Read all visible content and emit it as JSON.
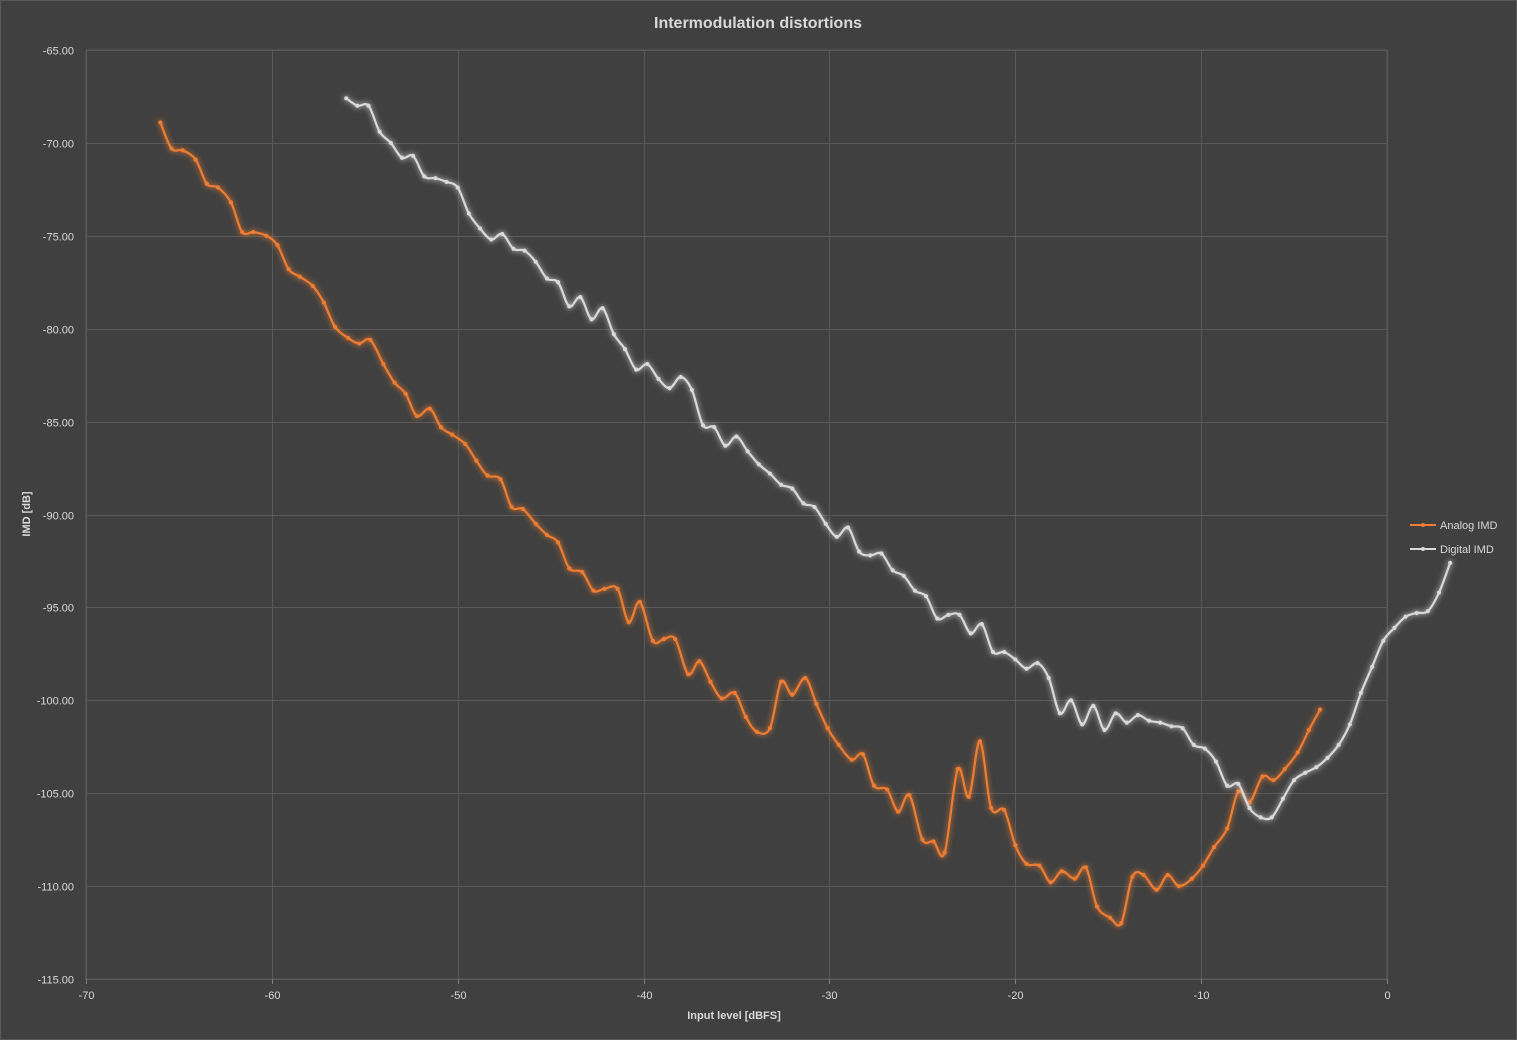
{
  "chart_data": {
    "type": "line",
    "title": "Intermodulation distortions",
    "xlabel": "Input level [dBFS]",
    "ylabel": "IMD [dB]",
    "xlim": [
      -70,
      0
    ],
    "ylim": [
      -115,
      -65
    ],
    "x_ticks": [
      "-70",
      "-60",
      "-50",
      "-40",
      "-30",
      "-20",
      "-10",
      "0"
    ],
    "y_ticks": [
      "-65.00",
      "-70.00",
      "-75.00",
      "-80.00",
      "-85.00",
      "-90.00",
      "-95.00",
      "-100.00",
      "-105.00",
      "-110.00",
      "-115.00"
    ],
    "grid": true,
    "legend_position": "right",
    "series": [
      {
        "name": "Analog IMD",
        "color": "#ed7d31",
        "points": [
          [
            -66.0,
            -68.9
          ],
          [
            -65.4,
            -70.3
          ],
          [
            -64.8,
            -70.4
          ],
          [
            -64.1,
            -70.9
          ],
          [
            -63.5,
            -72.2
          ],
          [
            -62.9,
            -72.4
          ],
          [
            -62.2,
            -73.2
          ],
          [
            -61.6,
            -74.8
          ],
          [
            -61.0,
            -74.8
          ],
          [
            -60.3,
            -75.0
          ],
          [
            -59.7,
            -75.5
          ],
          [
            -59.1,
            -76.8
          ],
          [
            -58.5,
            -77.2
          ],
          [
            -57.8,
            -77.7
          ],
          [
            -57.2,
            -78.6
          ],
          [
            -56.6,
            -79.9
          ],
          [
            -55.9,
            -80.5
          ],
          [
            -55.3,
            -80.8
          ],
          [
            -54.7,
            -80.6
          ],
          [
            -54.0,
            -81.9
          ],
          [
            -53.4,
            -82.9
          ],
          [
            -52.8,
            -83.5
          ],
          [
            -52.2,
            -84.7
          ],
          [
            -51.5,
            -84.3
          ],
          [
            -50.9,
            -85.3
          ],
          [
            -50.3,
            -85.7
          ],
          [
            -49.6,
            -86.2
          ],
          [
            -49.0,
            -87.1
          ],
          [
            -48.4,
            -87.9
          ],
          [
            -47.7,
            -88.1
          ],
          [
            -47.1,
            -89.6
          ],
          [
            -46.5,
            -89.7
          ],
          [
            -45.8,
            -90.5
          ],
          [
            -45.2,
            -91.1
          ],
          [
            -44.6,
            -91.5
          ],
          [
            -44.0,
            -92.9
          ],
          [
            -43.3,
            -93.1
          ],
          [
            -42.7,
            -94.1
          ],
          [
            -42.1,
            -94.0
          ],
          [
            -41.4,
            -94.0
          ],
          [
            -40.8,
            -95.8
          ],
          [
            -40.2,
            -94.7
          ],
          [
            -39.5,
            -96.8
          ],
          [
            -38.9,
            -96.7
          ],
          [
            -38.3,
            -96.7
          ],
          [
            -37.6,
            -98.6
          ],
          [
            -37.0,
            -97.9
          ],
          [
            -36.4,
            -99.0
          ],
          [
            -35.8,
            -99.9
          ],
          [
            -35.1,
            -99.6
          ],
          [
            -34.5,
            -100.9
          ],
          [
            -33.9,
            -101.7
          ],
          [
            -33.2,
            -101.5
          ],
          [
            -32.6,
            -99.0
          ],
          [
            -32.0,
            -99.7
          ],
          [
            -31.3,
            -98.8
          ],
          [
            -30.7,
            -100.2
          ],
          [
            -30.1,
            -101.5
          ],
          [
            -29.5,
            -102.4
          ],
          [
            -28.8,
            -103.2
          ],
          [
            -28.2,
            -102.9
          ],
          [
            -27.6,
            -104.6
          ],
          [
            -26.9,
            -104.8
          ],
          [
            -26.3,
            -106.0
          ],
          [
            -25.7,
            -105.1
          ],
          [
            -25.0,
            -107.5
          ],
          [
            -24.4,
            -107.6
          ],
          [
            -23.8,
            -108.2
          ],
          [
            -23.1,
            -103.7
          ],
          [
            -22.5,
            -105.2
          ],
          [
            -21.9,
            -102.2
          ],
          [
            -21.3,
            -105.8
          ],
          [
            -20.6,
            -105.9
          ],
          [
            -20.0,
            -107.8
          ],
          [
            -19.4,
            -108.8
          ],
          [
            -18.7,
            -108.9
          ],
          [
            -18.1,
            -109.8
          ],
          [
            -17.5,
            -109.2
          ],
          [
            -16.8,
            -109.6
          ],
          [
            -16.2,
            -109.0
          ],
          [
            -15.6,
            -111.1
          ],
          [
            -14.9,
            -111.7
          ],
          [
            -14.3,
            -112.0
          ],
          [
            -13.7,
            -109.5
          ],
          [
            -13.1,
            -109.4
          ],
          [
            -12.4,
            -110.2
          ],
          [
            -11.8,
            -109.4
          ],
          [
            -11.2,
            -110.0
          ],
          [
            -10.5,
            -109.6
          ],
          [
            -9.9,
            -108.9
          ],
          [
            -9.3,
            -107.9
          ],
          [
            -8.6,
            -106.9
          ],
          [
            -8.0,
            -104.9
          ],
          [
            -7.4,
            -105.5
          ],
          [
            -6.7,
            -104.1
          ],
          [
            -6.1,
            -104.3
          ],
          [
            -5.5,
            -103.7
          ],
          [
            -4.8,
            -102.8
          ],
          [
            -4.2,
            -101.6
          ],
          [
            -3.6,
            -100.5
          ]
        ]
      },
      {
        "name": "Digital IMD",
        "color": "#d9d9d9",
        "points": [
          [
            -56.0,
            -67.6
          ],
          [
            -55.4,
            -68.0
          ],
          [
            -54.8,
            -68.0
          ],
          [
            -54.2,
            -69.4
          ],
          [
            -53.6,
            -70.0
          ],
          [
            -53.0,
            -70.8
          ],
          [
            -52.4,
            -70.7
          ],
          [
            -51.8,
            -71.8
          ],
          [
            -51.2,
            -71.9
          ],
          [
            -50.6,
            -72.1
          ],
          [
            -50.0,
            -72.4
          ],
          [
            -49.4,
            -73.8
          ],
          [
            -48.8,
            -74.6
          ],
          [
            -48.2,
            -75.2
          ],
          [
            -47.6,
            -74.9
          ],
          [
            -47.0,
            -75.7
          ],
          [
            -46.4,
            -75.8
          ],
          [
            -45.8,
            -76.4
          ],
          [
            -45.2,
            -77.3
          ],
          [
            -44.6,
            -77.5
          ],
          [
            -44.0,
            -78.8
          ],
          [
            -43.4,
            -78.3
          ],
          [
            -42.8,
            -79.5
          ],
          [
            -42.2,
            -78.9
          ],
          [
            -41.6,
            -80.3
          ],
          [
            -41.0,
            -81.1
          ],
          [
            -40.4,
            -82.2
          ],
          [
            -39.8,
            -81.9
          ],
          [
            -39.2,
            -82.7
          ],
          [
            -38.6,
            -83.2
          ],
          [
            -38.0,
            -82.6
          ],
          [
            -37.4,
            -83.3
          ],
          [
            -36.8,
            -85.2
          ],
          [
            -36.2,
            -85.3
          ],
          [
            -35.6,
            -86.3
          ],
          [
            -35.0,
            -85.8
          ],
          [
            -34.4,
            -86.6
          ],
          [
            -33.8,
            -87.3
          ],
          [
            -33.2,
            -87.8
          ],
          [
            -32.6,
            -88.4
          ],
          [
            -32.0,
            -88.6
          ],
          [
            -31.4,
            -89.4
          ],
          [
            -30.8,
            -89.6
          ],
          [
            -30.2,
            -90.5
          ],
          [
            -29.6,
            -91.2
          ],
          [
            -29.0,
            -90.7
          ],
          [
            -28.4,
            -92.0
          ],
          [
            -27.8,
            -92.2
          ],
          [
            -27.2,
            -92.1
          ],
          [
            -26.6,
            -93.0
          ],
          [
            -26.0,
            -93.3
          ],
          [
            -25.4,
            -94.1
          ],
          [
            -24.8,
            -94.4
          ],
          [
            -24.2,
            -95.6
          ],
          [
            -23.6,
            -95.4
          ],
          [
            -23.0,
            -95.4
          ],
          [
            -22.4,
            -96.4
          ],
          [
            -21.8,
            -95.9
          ],
          [
            -21.2,
            -97.4
          ],
          [
            -20.6,
            -97.4
          ],
          [
            -20.0,
            -97.8
          ],
          [
            -19.4,
            -98.3
          ],
          [
            -18.8,
            -98.0
          ],
          [
            -18.2,
            -98.8
          ],
          [
            -17.6,
            -100.7
          ],
          [
            -17.0,
            -100.0
          ],
          [
            -16.4,
            -101.3
          ],
          [
            -15.8,
            -100.3
          ],
          [
            -15.2,
            -101.6
          ],
          [
            -14.6,
            -100.7
          ],
          [
            -14.0,
            -101.2
          ],
          [
            -13.4,
            -100.8
          ],
          [
            -12.8,
            -101.1
          ],
          [
            -12.2,
            -101.2
          ],
          [
            -11.6,
            -101.4
          ],
          [
            -11.0,
            -101.5
          ],
          [
            -10.4,
            -102.4
          ],
          [
            -9.8,
            -102.6
          ],
          [
            -9.2,
            -103.3
          ],
          [
            -8.6,
            -104.6
          ],
          [
            -8.0,
            -104.5
          ],
          [
            -7.4,
            -105.8
          ],
          [
            -6.8,
            -106.3
          ],
          [
            -6.2,
            -106.3
          ],
          [
            -5.6,
            -105.3
          ],
          [
            -5.0,
            -104.3
          ],
          [
            -4.4,
            -103.9
          ],
          [
            -3.8,
            -103.6
          ],
          [
            -3.2,
            -103.1
          ],
          [
            -2.6,
            -102.4
          ],
          [
            -2.0,
            -101.3
          ],
          [
            -1.4,
            -99.6
          ],
          [
            -0.8,
            -98.2
          ],
          [
            -0.2,
            -96.8
          ],
          [
            0.4,
            -96.1
          ],
          [
            1.0,
            -95.5
          ],
          [
            1.6,
            -95.3
          ],
          [
            2.2,
            -95.2
          ],
          [
            2.8,
            -94.2
          ],
          [
            3.4,
            -92.6
          ]
        ]
      }
    ]
  }
}
